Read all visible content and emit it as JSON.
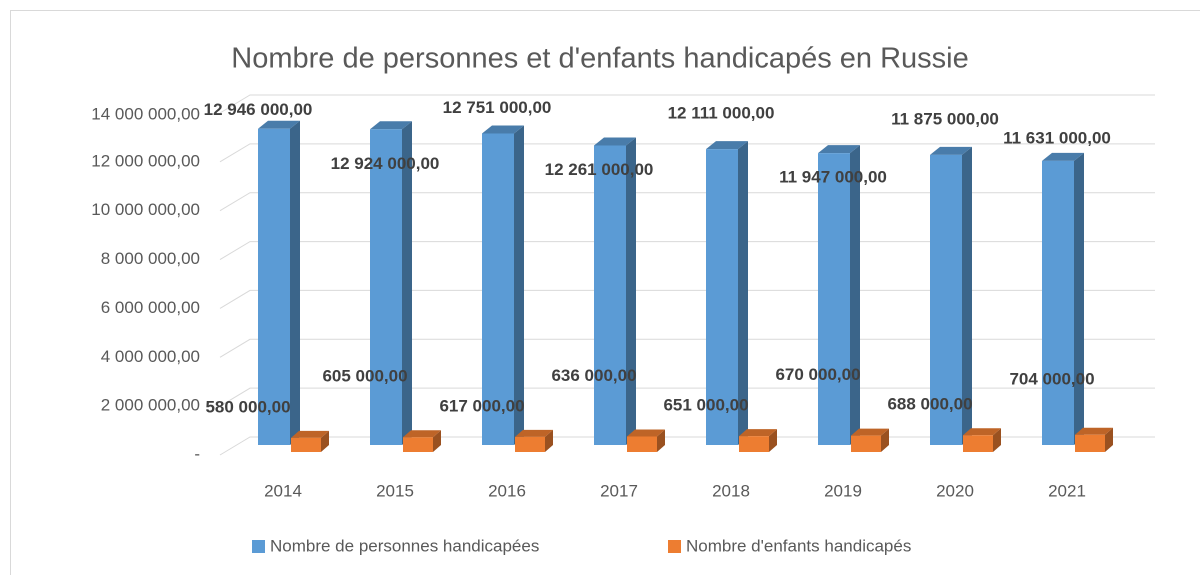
{
  "chart_data": {
    "type": "bar3d",
    "title": "Nombre de personnes et d'enfants handicapés en Russie",
    "categories": [
      "2014",
      "2015",
      "2016",
      "2017",
      "2018",
      "2019",
      "2020",
      "2021"
    ],
    "series": [
      {
        "name": "Nombre de personnes handicapées",
        "color": "#5b9bd5",
        "values": [
          12946000,
          12924000,
          12751000,
          12261000,
          12111000,
          11947000,
          11875000,
          11631000
        ],
        "value_labels": [
          "12 946 000,00",
          "12 924 000,00",
          "12 751 000,00",
          "12 261 000,00",
          "12 111 000,00",
          "11 947 000,00",
          "11 875 000,00",
          "11 631 000,00"
        ]
      },
      {
        "name": "Nombre d'enfants handicapés",
        "color": "#ed7d31",
        "values": [
          580000,
          605000,
          617000,
          636000,
          651000,
          670000,
          688000,
          704000
        ],
        "value_labels": [
          "580 000,00",
          "605 000,00",
          "617 000,00",
          "636 000,00",
          "651 000,00",
          "670 000,00",
          "688 000,00",
          "704 000,00"
        ]
      }
    ],
    "ylim": [
      0,
      14000000
    ],
    "yticks": [
      {
        "value": 0,
        "label": "-"
      },
      {
        "value": 2000000,
        "label": "2 000 000,00"
      },
      {
        "value": 4000000,
        "label": "4 000 000,00"
      },
      {
        "value": 6000000,
        "label": "6 000 000,00"
      },
      {
        "value": 8000000,
        "label": "8 000 000,00"
      },
      {
        "value": 10000000,
        "label": "10 000 000,00"
      },
      {
        "value": 12000000,
        "label": "12 000 000,00"
      },
      {
        "value": 14000000,
        "label": "14 000 000,00"
      }
    ],
    "grid": true,
    "legend": "bottom"
  }
}
